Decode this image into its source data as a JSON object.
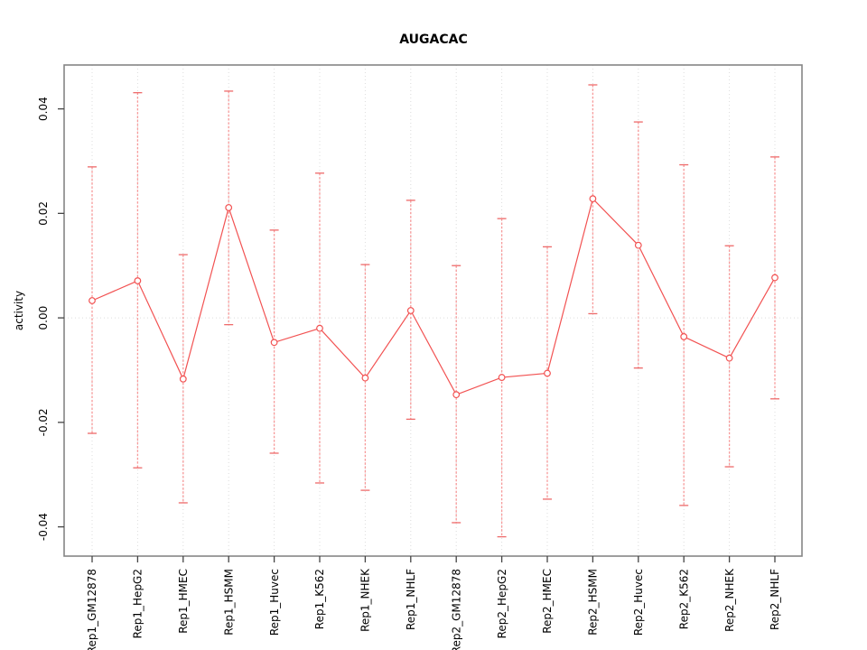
{
  "chart_data": {
    "type": "line",
    "title": "AUGACAC",
    "xlabel": "",
    "ylabel": "activity",
    "legend": "none",
    "grid": "dotted vertical gridline at each category; dotted horizontal line at y=0",
    "categories": [
      "Rep1_GM12878",
      "Rep1_HepG2",
      "Rep1_HMEC",
      "Rep1_HSMM",
      "Rep1_Huvec",
      "Rep1_K562",
      "Rep1_NHEK",
      "Rep1_NHLF",
      "Rep2_GM12878",
      "Rep2_HepG2",
      "Rep2_HMEC",
      "Rep2_HSMM",
      "Rep2_Huvec",
      "Rep2_K562",
      "Rep2_NHEK",
      "Rep2_NHLF"
    ],
    "series": [
      {
        "name": "activity",
        "values": [
          0.0033,
          0.0071,
          -0.0117,
          0.0211,
          -0.0047,
          -0.002,
          -0.0115,
          0.0014,
          -0.0147,
          -0.0114,
          -0.0106,
          0.0228,
          0.0139,
          -0.0036,
          -0.0077,
          0.0077
        ],
        "error_high": [
          0.0289,
          0.0431,
          0.0121,
          0.0434,
          0.0168,
          0.0277,
          0.0102,
          0.0225,
          0.01,
          0.019,
          0.0136,
          0.0446,
          0.0375,
          0.0293,
          0.0138,
          0.0308
        ],
        "error_low": [
          -0.0221,
          -0.0287,
          -0.0354,
          -0.0013,
          -0.0259,
          -0.0316,
          -0.033,
          -0.0194,
          -0.0392,
          -0.0419,
          -0.0347,
          0.0008,
          -0.0096,
          -0.0359,
          -0.0285,
          -0.0155
        ]
      }
    ],
    "ylim": [
      -0.0456,
      0.0484
    ],
    "yticks": [
      0.04,
      0.02,
      0.0,
      -0.02,
      -0.04
    ],
    "ytick_labels": [
      "0.04",
      "0.02",
      "0.00",
      "-0.02",
      "-0.04"
    ],
    "colors": {
      "line": "#f25252",
      "point": "#f25252",
      "error_bar": "#f79a9a",
      "error_cap": "#ee6a6a",
      "grid": "#dcdcdc",
      "box": "#858585",
      "tick": "#444444",
      "text": "#000000"
    }
  }
}
